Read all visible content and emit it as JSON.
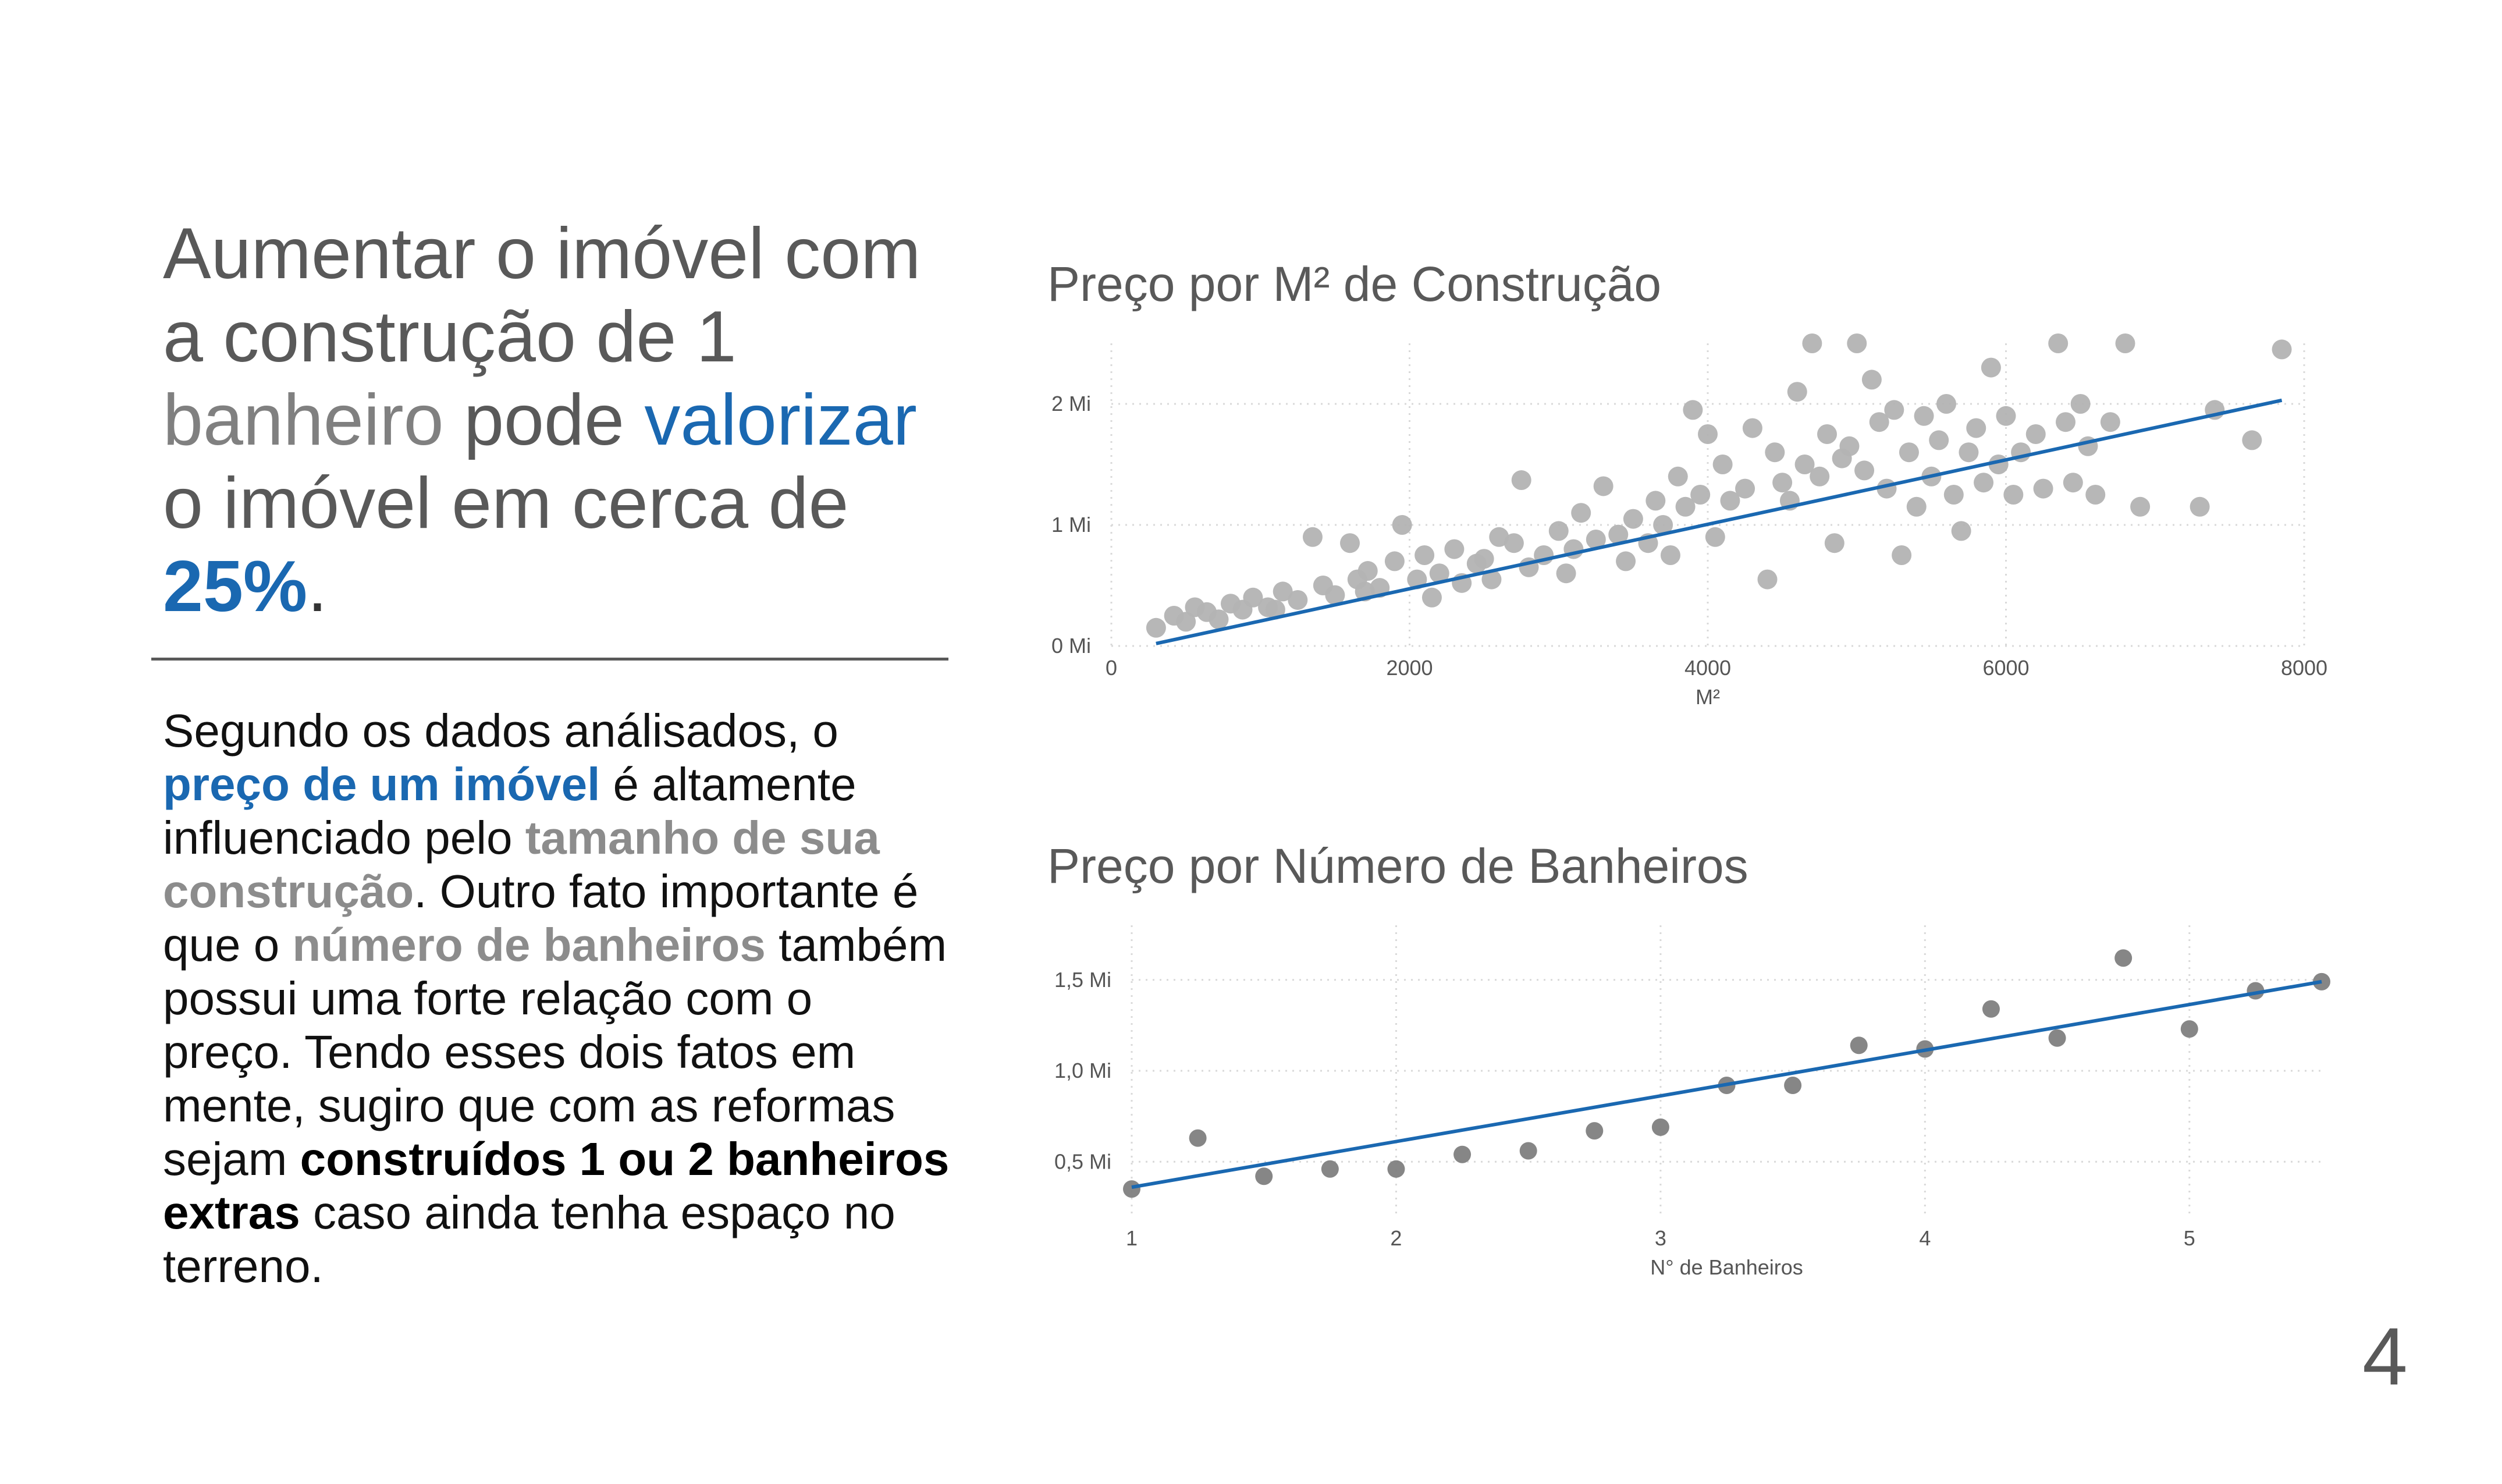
{
  "headline": {
    "p1": "Aumentar o imóvel com a construção de 1",
    "p2": "banheiro",
    "p3": " pode ",
    "p4": "valorizar",
    "p5": " o imóvel em cerca de ",
    "p6": "25%",
    "p7": "."
  },
  "body": {
    "t1": "Segundo os dados análisados, o ",
    "t2": "preço de um imóvel",
    "t3": " é altamente influenciado pelo ",
    "t4": "tamanho de sua construção",
    "t5": ". Outro fato importante é que o ",
    "t6": "número de banheiros",
    "t7": " também possui uma forte relação com o preço. Tendo esses dois fatos em mente, sugiro que com as reformas sejam ",
    "t8": "construídos 1 ou 2 banheiros extras",
    "t9": " caso ainda tenha espaço no terreno."
  },
  "page_number": "4",
  "colors": {
    "accent": "#1a68b1",
    "points1": "#b3b3b3",
    "points2": "#808080",
    "text": "#595959"
  },
  "chart_data": [
    {
      "type": "scatter",
      "title": "Preço por M² de Construção",
      "xlabel": "M²",
      "ylabel": "",
      "xlim": [
        0,
        8000
      ],
      "ylim": [
        0,
        2.5
      ],
      "x_ticks": [
        0,
        2000,
        4000,
        6000,
        8000
      ],
      "y_ticks": [
        0,
        1,
        2
      ],
      "y_tick_labels": [
        "0 Mi",
        "1 Mi",
        "2 Mi"
      ],
      "grid": true,
      "trendline": {
        "x": [
          300,
          7850
        ],
        "y": [
          0.02,
          2.03
        ]
      },
      "points": [
        [
          300,
          0.15
        ],
        [
          420,
          0.25
        ],
        [
          500,
          0.2
        ],
        [
          560,
          0.32
        ],
        [
          640,
          0.28
        ],
        [
          720,
          0.22
        ],
        [
          800,
          0.35
        ],
        [
          880,
          0.3
        ],
        [
          950,
          0.4
        ],
        [
          1050,
          0.32
        ],
        [
          1150,
          0.45
        ],
        [
          1250,
          0.38
        ],
        [
          1350,
          0.9
        ],
        [
          1420,
          0.5
        ],
        [
          1500,
          0.42
        ],
        [
          1600,
          0.85
        ],
        [
          1650,
          0.55
        ],
        [
          1720,
          0.62
        ],
        [
          1800,
          0.48
        ],
        [
          1900,
          0.7
        ],
        [
          1950,
          1.0
        ],
        [
          2050,
          0.55
        ],
        [
          2100,
          0.75
        ],
        [
          2200,
          0.6
        ],
        [
          2300,
          0.8
        ],
        [
          2350,
          0.52
        ],
        [
          2450,
          0.68
        ],
        [
          2500,
          0.72
        ],
        [
          2600,
          0.9
        ],
        [
          2700,
          0.85
        ],
        [
          2750,
          1.37
        ],
        [
          2800,
          0.65
        ],
        [
          2900,
          0.75
        ],
        [
          3000,
          0.95
        ],
        [
          3100,
          0.8
        ],
        [
          3150,
          1.1
        ],
        [
          3250,
          0.88
        ],
        [
          3300,
          1.32
        ],
        [
          3400,
          0.92
        ],
        [
          3500,
          1.05
        ],
        [
          3600,
          0.85
        ],
        [
          3650,
          1.2
        ],
        [
          3700,
          1.0
        ],
        [
          3800,
          1.4
        ],
        [
          3850,
          1.15
        ],
        [
          3900,
          1.95
        ],
        [
          3950,
          1.25
        ],
        [
          4000,
          1.75
        ],
        [
          4100,
          1.5
        ],
        [
          4150,
          1.2
        ],
        [
          4250,
          1.3
        ],
        [
          4300,
          1.8
        ],
        [
          4400,
          0.55
        ],
        [
          4450,
          1.6
        ],
        [
          4500,
          1.35
        ],
        [
          4550,
          1.2
        ],
        [
          4600,
          2.1
        ],
        [
          4650,
          1.5
        ],
        [
          4700,
          2.5
        ],
        [
          4750,
          1.4
        ],
        [
          4800,
          1.75
        ],
        [
          4850,
          0.85
        ],
        [
          4900,
          1.55
        ],
        [
          4950,
          1.65
        ],
        [
          5000,
          2.5
        ],
        [
          5050,
          1.45
        ],
        [
          5100,
          2.2
        ],
        [
          5150,
          1.85
        ],
        [
          5200,
          1.3
        ],
        [
          5250,
          1.95
        ],
        [
          5300,
          0.75
        ],
        [
          5350,
          1.6
        ],
        [
          5400,
          1.15
        ],
        [
          5450,
          1.9
        ],
        [
          5500,
          1.4
        ],
        [
          5550,
          1.7
        ],
        [
          5600,
          2.0
        ],
        [
          5650,
          1.25
        ],
        [
          5700,
          0.95
        ],
        [
          5750,
          1.6
        ],
        [
          5800,
          1.8
        ],
        [
          5850,
          1.35
        ],
        [
          5900,
          2.3
        ],
        [
          5950,
          1.5
        ],
        [
          6000,
          1.9
        ],
        [
          6050,
          1.25
        ],
        [
          6100,
          1.6
        ],
        [
          6200,
          1.75
        ],
        [
          6250,
          1.3
        ],
        [
          6350,
          2.5
        ],
        [
          6400,
          1.85
        ],
        [
          6450,
          1.35
        ],
        [
          6500,
          2.0
        ],
        [
          6550,
          1.65
        ],
        [
          6600,
          1.25
        ],
        [
          6700,
          1.85
        ],
        [
          6800,
          2.5
        ],
        [
          6900,
          1.15
        ],
        [
          7300,
          1.15
        ],
        [
          7400,
          1.95
        ],
        [
          7650,
          1.7
        ],
        [
          7850,
          2.45
        ],
        [
          1100,
          0.3
        ],
        [
          1700,
          0.45
        ],
        [
          2150,
          0.4
        ],
        [
          2550,
          0.55
        ],
        [
          3050,
          0.6
        ],
        [
          3450,
          0.7
        ],
        [
          3750,
          0.75
        ],
        [
          4050,
          0.9
        ]
      ]
    },
    {
      "type": "scatter",
      "title": "Preço por Número de Banheiros",
      "xlabel": "N° de Banheiros",
      "ylabel": "",
      "xlim": [
        1,
        5.5
      ],
      "ylim": [
        0.2,
        1.8
      ],
      "x_ticks": [
        1,
        2,
        3,
        4,
        5
      ],
      "y_ticks": [
        0.5,
        1.0,
        1.5
      ],
      "y_tick_labels": [
        "0,5 Mi",
        "1,0 Mi",
        "1,5 Mi"
      ],
      "grid": true,
      "trendline": {
        "x": [
          1,
          5.5
        ],
        "y": [
          0.36,
          1.49
        ]
      },
      "points": [
        [
          1.0,
          0.35
        ],
        [
          1.25,
          0.63
        ],
        [
          1.5,
          0.42
        ],
        [
          1.75,
          0.46
        ],
        [
          2.0,
          0.46
        ],
        [
          2.25,
          0.54
        ],
        [
          2.5,
          0.56
        ],
        [
          2.75,
          0.67
        ],
        [
          3.0,
          0.69
        ],
        [
          3.25,
          0.92
        ],
        [
          3.5,
          0.92
        ],
        [
          3.75,
          1.14
        ],
        [
          4.0,
          1.12
        ],
        [
          4.25,
          1.34
        ],
        [
          4.5,
          1.18
        ],
        [
          4.75,
          1.62
        ],
        [
          5.0,
          1.23
        ],
        [
          5.25,
          1.44
        ],
        [
          5.5,
          1.49
        ]
      ]
    }
  ]
}
